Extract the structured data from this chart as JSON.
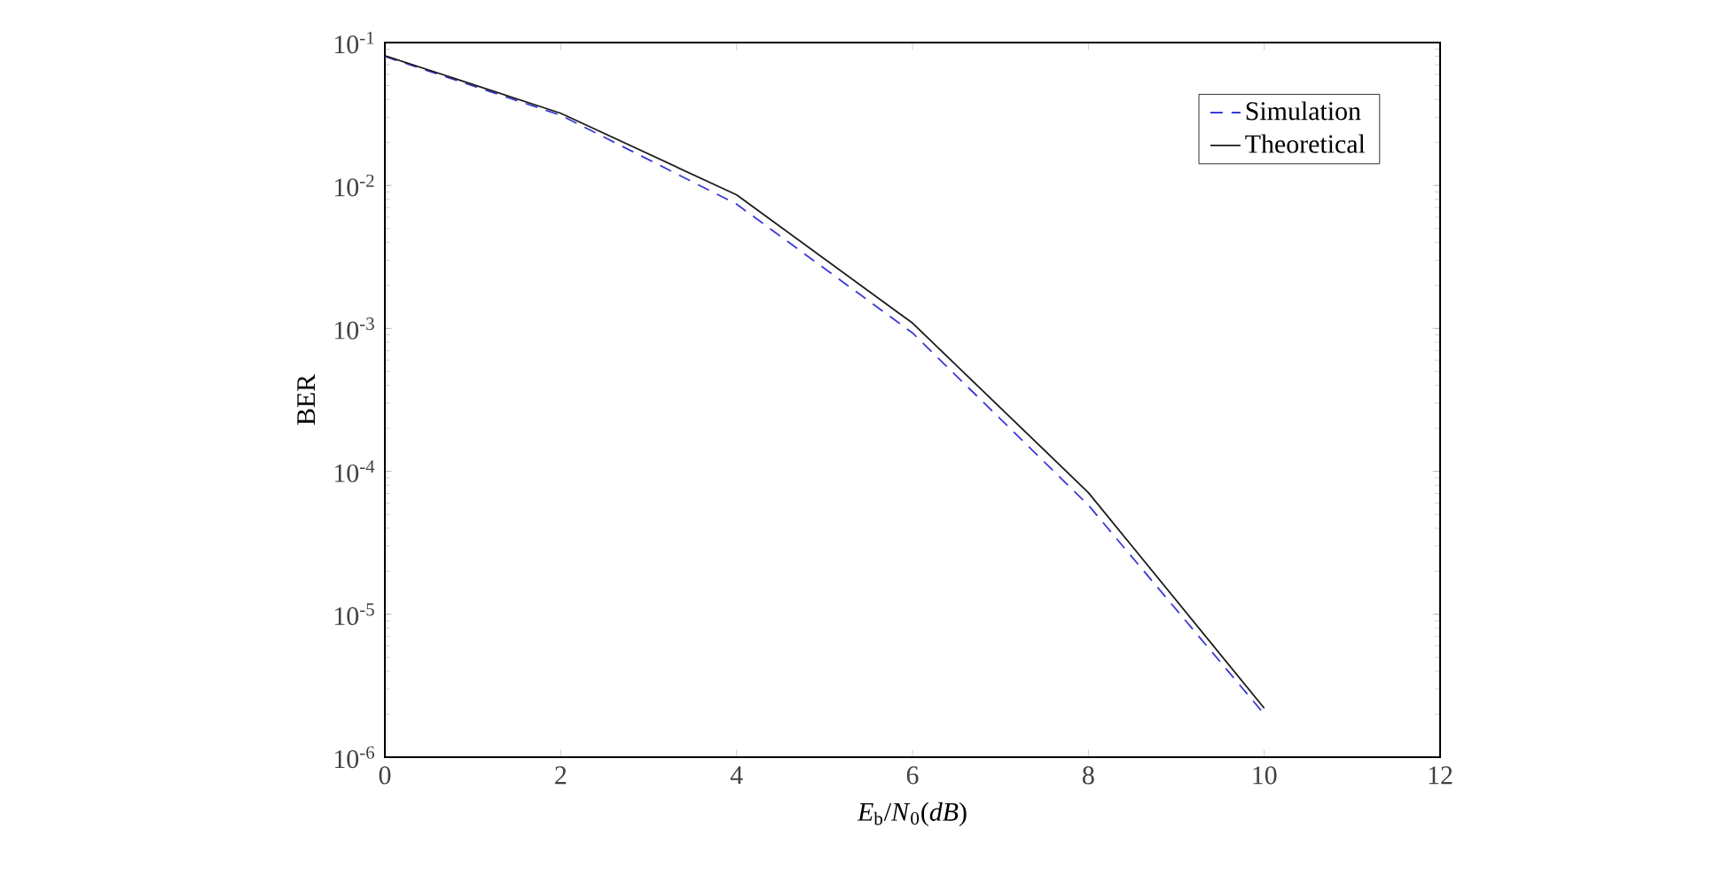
{
  "chart_data": {
    "type": "line",
    "xlabel": "*E*$_{b}$/*N*$_{0}$(*dB*)",
    "ylabel": "BER",
    "x": [
      0,
      2,
      4,
      6,
      8,
      10
    ],
    "series": [
      {
        "name": "Simulation",
        "color": "#3a3ad6",
        "line_style": "dashed",
        "values": [
          0.08,
          0.031,
          0.0074,
          0.00093,
          5.8e-05,
          2e-06
        ]
      },
      {
        "name": "Theoretical",
        "color": "#1a1a1a",
        "line_style": "solid",
        "values": [
          0.081,
          0.032,
          0.0086,
          0.00109,
          7.1e-05,
          2.2e-06
        ]
      }
    ],
    "xlim": [
      0,
      12
    ],
    "ylim": [
      1e-06,
      0.1
    ],
    "log": "y",
    "xticks": [
      0,
      2,
      4,
      6,
      8,
      10,
      12
    ],
    "yticks": [
      {
        "value": 1e-06,
        "label": "10$^{-6}$"
      },
      {
        "value": 1e-05,
        "label": "10$^{-5}$"
      },
      {
        "value": 0.0001,
        "label": "10$^{-4}$"
      },
      {
        "value": 0.001,
        "label": "10$^{-3}$"
      },
      {
        "value": 0.01,
        "label": "10$^{-2}$"
      },
      {
        "value": 0.1,
        "label": "10$^{-1}$"
      }
    ],
    "grid": false,
    "legend": "top right",
    "marker": "none"
  }
}
